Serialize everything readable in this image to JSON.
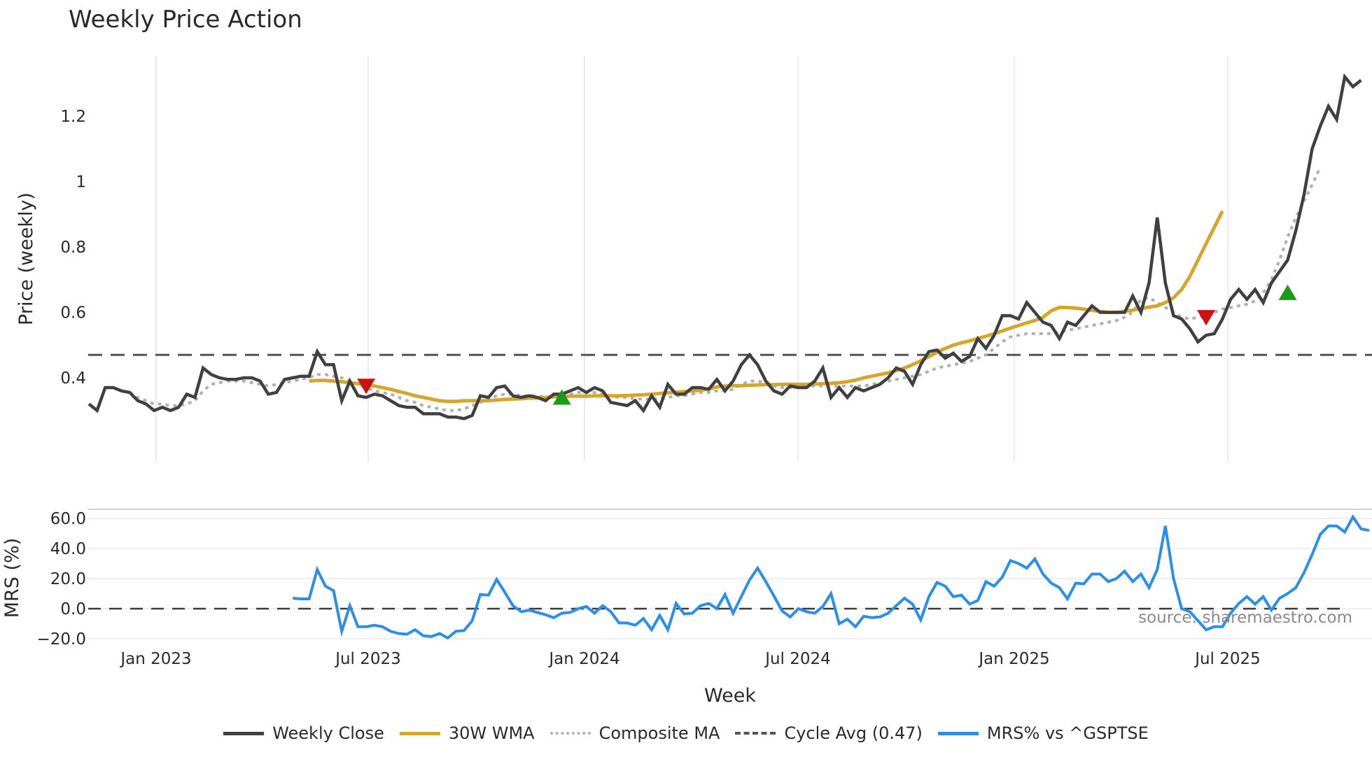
{
  "title": "Weekly Price Action",
  "source_note": "source: sharemaestro.com",
  "legend": [
    {
      "label": "Weekly Close",
      "color": "#404040",
      "style": "solid"
    },
    {
      "label": "30W WMA",
      "color": "#d4a72c",
      "style": "solid"
    },
    {
      "label": "Composite MA",
      "color": "#b0b0b0",
      "style": "dotted"
    },
    {
      "label": "Cycle Avg (0.47)",
      "color": "#555555",
      "style": "dashed"
    },
    {
      "label": "MRS% vs ^GSPTSE",
      "color": "#2b8fe8",
      "style": "solid"
    }
  ],
  "chart_data": [
    {
      "type": "line",
      "title": "Weekly Price Action",
      "xlabel": "Week",
      "ylabel": "Price (weekly)",
      "x_tick_labels": [
        "Jan 2023",
        "Jul 2023",
        "Jan 2024",
        "Jul 2024",
        "Jan 2025",
        "Jul 2025"
      ],
      "y_tick_labels": [
        "0.4",
        "0.6",
        "0.8",
        "1",
        "1.2"
      ],
      "ylim": [
        0.21,
        1.42
      ],
      "grid": "vertical",
      "reference_line": {
        "label": "Cycle Avg (0.47)",
        "value": 0.47
      },
      "x_start": "2022-11-07",
      "x_step": "1 week",
      "series": [
        {
          "name": "Weekly Close",
          "values": [
            0.32,
            0.3,
            0.37,
            0.37,
            0.36,
            0.355,
            0.33,
            0.32,
            0.3,
            0.31,
            0.3,
            0.31,
            0.35,
            0.34,
            0.43,
            0.41,
            0.4,
            0.395,
            0.395,
            0.4,
            0.4,
            0.39,
            0.35,
            0.355,
            0.395,
            0.4,
            0.405,
            0.405,
            0.48,
            0.44,
            0.44,
            0.33,
            0.39,
            0.345,
            0.34,
            0.35,
            0.345,
            0.33,
            0.315,
            0.31,
            0.31,
            0.29,
            0.29,
            0.29,
            0.28,
            0.28,
            0.275,
            0.285,
            0.345,
            0.34,
            0.37,
            0.375,
            0.345,
            0.34,
            0.345,
            0.34,
            0.33,
            0.35,
            0.35,
            0.36,
            0.37,
            0.355,
            0.37,
            0.36,
            0.325,
            0.32,
            0.315,
            0.33,
            0.3,
            0.345,
            0.31,
            0.38,
            0.35,
            0.35,
            0.37,
            0.37,
            0.365,
            0.395,
            0.36,
            0.39,
            0.44,
            0.47,
            0.44,
            0.39,
            0.36,
            0.35,
            0.375,
            0.37,
            0.37,
            0.39,
            0.43,
            0.34,
            0.37,
            0.34,
            0.37,
            0.36,
            0.37,
            0.38,
            0.4,
            0.43,
            0.42,
            0.38,
            0.44,
            0.48,
            0.485,
            0.46,
            0.475,
            0.45,
            0.465,
            0.52,
            0.49,
            0.53,
            0.59,
            0.59,
            0.58,
            0.63,
            0.6,
            0.57,
            0.56,
            0.52,
            0.57,
            0.56,
            0.59,
            0.62,
            0.6,
            0.6,
            0.6,
            0.6,
            0.65,
            0.6,
            0.69,
            0.89,
            0.69,
            0.59,
            0.58,
            0.55,
            0.51,
            0.53,
            0.535,
            0.58,
            0.64,
            0.67,
            0.64,
            0.67,
            0.63,
            0.69,
            0.725,
            0.76,
            0.85,
            0.96,
            1.1,
            1.17,
            1.23,
            1.19,
            1.32,
            1.29,
            1.31
          ]
        },
        {
          "name": "30W WMA",
          "values": [
            null,
            null,
            null,
            null,
            null,
            null,
            null,
            null,
            null,
            null,
            null,
            null,
            null,
            null,
            null,
            null,
            null,
            null,
            null,
            null,
            null,
            null,
            null,
            null,
            null,
            null,
            null,
            0.39,
            0.392,
            0.392,
            0.39,
            0.388,
            0.385,
            0.382,
            0.378,
            0.375,
            0.37,
            0.365,
            0.358,
            0.352,
            0.345,
            0.34,
            0.335,
            0.33,
            0.328,
            0.328,
            0.33,
            0.33,
            0.33,
            0.33,
            0.332,
            0.334,
            0.335,
            0.336,
            0.338,
            0.338,
            0.34,
            0.342,
            0.343,
            0.344,
            0.344,
            0.344,
            0.345,
            0.345,
            0.345,
            0.345,
            0.346,
            0.347,
            0.348,
            0.35,
            0.352,
            0.354,
            0.356,
            0.358,
            0.36,
            0.362,
            0.366,
            0.372,
            0.375,
            0.376,
            0.376,
            0.377,
            0.378,
            0.379,
            0.379,
            0.38,
            0.38,
            0.38,
            0.38,
            0.381,
            0.382,
            0.383,
            0.385,
            0.388,
            0.393,
            0.4,
            0.405,
            0.41,
            0.415,
            0.422,
            0.43,
            0.44,
            0.452,
            0.465,
            0.478,
            0.49,
            0.5,
            0.507,
            0.513,
            0.52,
            0.527,
            0.535,
            0.543,
            0.552,
            0.56,
            0.568,
            0.575,
            0.585,
            0.605,
            0.615,
            0.615,
            0.613,
            0.61,
            0.606,
            0.603,
            0.6,
            0.6,
            0.603,
            0.607,
            0.612,
            0.616,
            0.62,
            0.63,
            0.645,
            0.67,
            0.71,
            0.76,
            0.81,
            0.86,
            0.91
          ]
        },
        {
          "name": "Composite MA",
          "values": [
            null,
            null,
            null,
            null,
            null,
            0.355,
            0.34,
            0.33,
            0.32,
            0.32,
            0.315,
            0.315,
            0.32,
            0.33,
            0.36,
            0.38,
            0.385,
            0.39,
            0.39,
            0.39,
            0.385,
            0.38,
            0.375,
            0.38,
            0.385,
            0.39,
            0.395,
            0.4,
            0.41,
            0.41,
            0.405,
            0.4,
            0.39,
            0.38,
            0.37,
            0.36,
            0.355,
            0.35,
            0.34,
            0.33,
            0.325,
            0.315,
            0.31,
            0.305,
            0.3,
            0.3,
            0.305,
            0.315,
            0.325,
            0.335,
            0.345,
            0.35,
            0.35,
            0.345,
            0.345,
            0.345,
            0.34,
            0.34,
            0.345,
            0.35,
            0.355,
            0.355,
            0.355,
            0.35,
            0.345,
            0.34,
            0.34,
            0.335,
            0.335,
            0.335,
            0.335,
            0.34,
            0.345,
            0.345,
            0.35,
            0.355,
            0.355,
            0.36,
            0.36,
            0.365,
            0.38,
            0.39,
            0.39,
            0.385,
            0.375,
            0.37,
            0.37,
            0.37,
            0.375,
            0.375,
            0.375,
            0.375,
            0.375,
            0.375,
            0.375,
            0.375,
            0.38,
            0.385,
            0.39,
            0.395,
            0.4,
            0.405,
            0.41,
            0.42,
            0.43,
            0.435,
            0.44,
            0.445,
            0.45,
            0.46,
            0.47,
            0.49,
            0.51,
            0.525,
            0.53,
            0.535,
            0.535,
            0.535,
            0.535,
            0.54,
            0.545,
            0.55,
            0.555,
            0.56,
            0.565,
            0.57,
            0.575,
            0.585,
            0.6,
            0.64,
            0.645,
            0.63,
            0.615,
            0.6,
            0.585,
            0.58,
            0.585,
            0.59,
            0.6,
            0.61,
            0.615,
            0.62,
            0.625,
            0.635,
            0.66,
            0.7,
            0.76,
            0.83,
            0.89,
            0.94,
            0.99,
            1.045
          ]
        }
      ],
      "markers": [
        {
          "type": "sell",
          "shape": "triangle-down",
          "color": "#cc1111",
          "x_index": 34,
          "value": 0.375
        },
        {
          "type": "buy",
          "shape": "triangle-up",
          "color": "#1a9c1a",
          "x_index": 58,
          "value": 0.34
        },
        {
          "type": "sell",
          "shape": "triangle-down",
          "color": "#cc1111",
          "x_index": 137,
          "value": 0.585
        },
        {
          "type": "buy",
          "shape": "triangle-up",
          "color": "#1a9c1a",
          "x_index": 147,
          "value": 0.66
        }
      ]
    },
    {
      "type": "line",
      "title": "",
      "xlabel": "Week",
      "ylabel": "MRS (%)",
      "y_tick_labels": [
        "−20.0",
        "0.0",
        "20.0",
        "40.0",
        "60.0"
      ],
      "ylim": [
        -22,
        66
      ],
      "grid": "horizontal",
      "reference_line": {
        "value": 0
      },
      "series": [
        {
          "name": "MRS% vs ^GSPTSE",
          "start_index": 25,
          "values": [
            7,
            6.5,
            6.5,
            26,
            15,
            12,
            -15,
            2,
            -12,
            -12,
            -11,
            -12,
            -15,
            -16.5,
            -17,
            -14,
            -18,
            -18.5,
            -16.5,
            -19.5,
            -15,
            -14.5,
            -8,
            9.5,
            9,
            19.5,
            11,
            2,
            -2,
            -1,
            -2.5,
            -4,
            -6,
            -3,
            -2.5,
            0,
            1.5,
            -3,
            2,
            -2,
            -9.5,
            -9.5,
            -11,
            -6.5,
            -14,
            -4.5,
            -14,
            3.5,
            -3.5,
            -3,
            2,
            3.5,
            0,
            9.5,
            -3,
            8,
            19,
            27,
            18,
            8.5,
            -1.5,
            -5.5,
            0,
            -2,
            -3,
            1.5,
            10,
            -10,
            -7,
            -12,
            -5,
            -6,
            -5.5,
            -3,
            2,
            7,
            3,
            -7.5,
            8,
            17.5,
            15,
            8,
            9,
            3,
            5.5,
            18,
            15,
            21,
            32,
            30,
            27,
            33,
            23,
            17,
            14,
            6.5,
            17,
            16.5,
            23,
            23,
            18,
            20,
            25,
            18,
            23,
            14,
            26,
            55,
            20,
            0,
            -2,
            -8,
            -14,
            -12,
            -12,
            -3,
            3.5,
            8,
            3,
            8,
            -1,
            7,
            10,
            14,
            24,
            36,
            49.5,
            55,
            55,
            51,
            61,
            53,
            52
          ]
        }
      ]
    }
  ]
}
